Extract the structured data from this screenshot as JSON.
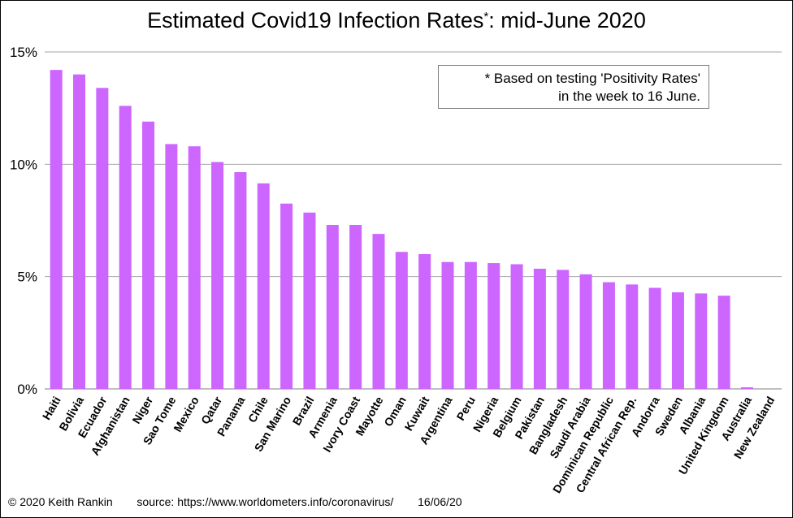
{
  "title": "Estimated Covid19 Infection Rates",
  "title_mark": "*",
  "title_suffix": ": mid-June 2020",
  "note": {
    "line1": "* Based on testing 'Positivity Rates'",
    "line2": "in the week to 16 June."
  },
  "footer": {
    "copyright": "© 2020  Keith Rankin",
    "source": "source:  https://www.worldometers.info/coronavirus/",
    "date": "16/06/20"
  },
  "chart_data": {
    "type": "bar",
    "title": "Estimated Covid19 Infection Rates*: mid-June 2020",
    "xlabel": "",
    "ylabel": "",
    "ylim": [
      0,
      15
    ],
    "yticks": [
      0,
      5,
      10,
      15
    ],
    "ytick_labels": [
      "0%",
      "5%",
      "10%",
      "15%"
    ],
    "grid": true,
    "bar_color": "#cc66ff",
    "categories": [
      "Haiti",
      "Bolivia",
      "Ecuador",
      "Afghanistan",
      "Niger",
      "Sao Tome",
      "Mexico",
      "Qatar",
      "Panama",
      "Chile",
      "San Marino",
      "Brazil",
      "Armenia",
      "Ivory Coast",
      "Mayotte",
      "Oman",
      "Kuwait",
      "Argentina",
      "Peru",
      "Nigeria",
      "Belgium",
      "Pakistan",
      "Bangladesh",
      "Saudi Arabia",
      "Dominican Republic",
      "Central African Rep.",
      "Andorra",
      "Sweden",
      "Albania",
      "United Kingdom",
      "Australia",
      "New Zealand"
    ],
    "values": [
      14.2,
      14.0,
      13.4,
      12.6,
      11.9,
      10.9,
      10.8,
      10.1,
      9.65,
      9.15,
      8.25,
      7.85,
      7.3,
      7.3,
      6.9,
      6.1,
      6.0,
      5.65,
      5.65,
      5.6,
      5.55,
      5.35,
      5.3,
      5.1,
      4.75,
      4.65,
      4.5,
      4.3,
      4.25,
      4.15,
      0.07,
      0.0
    ]
  }
}
